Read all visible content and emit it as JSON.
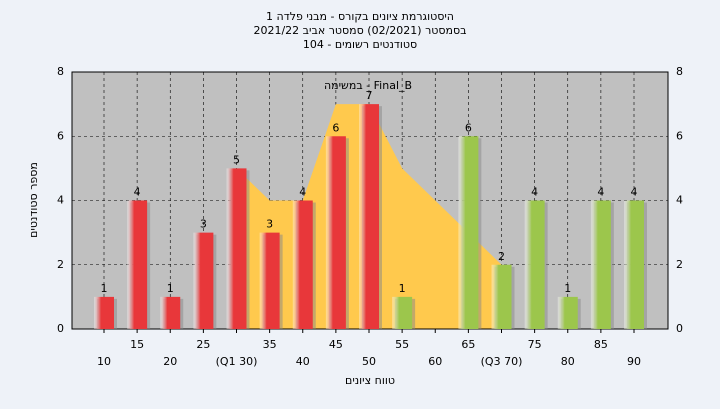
{
  "chart_data": {
    "type": "bar",
    "title": [
      "היסטוגרמת ציונים בקורס - מבני פלדה 1",
      "בסמסטר (02/2021) סמסטר אביב 2021/22",
      "סטודנטים רשומים - 104"
    ],
    "annotation": "במשימה - Final_B",
    "x_label": "טווח ציונים",
    "y_label": "מספר סטודנטים",
    "categories": [
      "10",
      "15",
      "20",
      "25",
      "(Q1 30)",
      "35",
      "40",
      "45",
      "50",
      "55",
      "60",
      "65",
      "(Q3 70)",
      "75",
      "80",
      "85",
      "90"
    ],
    "values": [
      1,
      4,
      1,
      3,
      5,
      3,
      4,
      6,
      7,
      1,
      null,
      6,
      2,
      4,
      1,
      4,
      4
    ],
    "bar_colors": [
      "#e8373a",
      "#e8373a",
      "#e8373a",
      "#e8373a",
      "#e8373a",
      "#e8373a",
      "#e8373a",
      "#e8373a",
      "#e8373a",
      "#9cc64c",
      "#9cc64c",
      "#9cc64c",
      "#9cc64c",
      "#9cc64c",
      "#9cc64c",
      "#9cc64c",
      "#9cc64c"
    ],
    "area": {
      "color": "#ffc94d",
      "values": [
        null,
        null,
        null,
        null,
        5,
        4,
        4,
        7,
        7,
        5,
        4,
        3,
        2,
        null,
        null,
        null,
        null
      ]
    },
    "ylim": [
      0,
      8
    ],
    "yticks": [
      0,
      2,
      4,
      6,
      8
    ],
    "grid": true
  }
}
